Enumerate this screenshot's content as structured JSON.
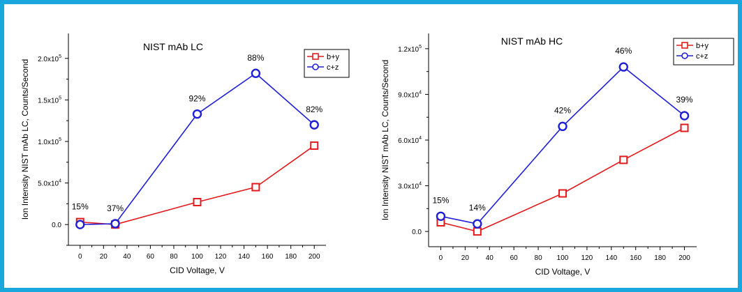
{
  "chart_data": [
    {
      "type": "line",
      "title": "NIST mAb LC",
      "xlabel": "CID Voltage, V",
      "ylabel": "Ion Intensity NIST mAb LC, Counts/Second",
      "x": [
        0,
        30,
        100,
        150,
        200
      ],
      "xlim": [
        -10,
        210
      ],
      "ylim": [
        -25000,
        230000
      ],
      "xticks": [
        0,
        20,
        40,
        60,
        80,
        100,
        120,
        140,
        160,
        180,
        200
      ],
      "yticks": [
        {
          "value": 0,
          "mantissa": "0.0",
          "exp": ""
        },
        {
          "value": 50000,
          "mantissa": "5.0x10",
          "exp": "4"
        },
        {
          "value": 100000,
          "mantissa": "1.0x10",
          "exp": "5"
        },
        {
          "value": 150000,
          "mantissa": "1.5x10",
          "exp": "5"
        },
        {
          "value": 200000,
          "mantissa": "2.0x10",
          "exp": "5"
        }
      ],
      "series": [
        {
          "name": "b+y",
          "marker": "square",
          "color": "#e31a1c",
          "values": [
            3000,
            0,
            27000,
            45000,
            95000
          ]
        },
        {
          "name": "c+z",
          "marker": "circle",
          "color": "#1f1fd6",
          "values": [
            0,
            1000,
            133000,
            182000,
            120000
          ]
        }
      ],
      "annotations": [
        "15%",
        "37%",
        "92%",
        "88%",
        "82%"
      ],
      "legend_position": "top-right",
      "grid": false
    },
    {
      "type": "line",
      "title": "NIST mAb HC",
      "xlabel": "CID Voltage, V",
      "ylabel": "Ion Intensity NIST mAb LC, Counts/Second",
      "x": [
        0,
        30,
        100,
        150,
        200
      ],
      "xlim": [
        -10,
        210
      ],
      "ylim": [
        -10000,
        130000
      ],
      "xticks": [
        0,
        20,
        40,
        60,
        80,
        100,
        120,
        140,
        160,
        180,
        200
      ],
      "yticks": [
        {
          "value": 0,
          "mantissa": "0.0",
          "exp": ""
        },
        {
          "value": 30000,
          "mantissa": "3.0x10",
          "exp": "4"
        },
        {
          "value": 60000,
          "mantissa": "6.0x10",
          "exp": "4"
        },
        {
          "value": 90000,
          "mantissa": "9.0x10",
          "exp": "4"
        },
        {
          "value": 120000,
          "mantissa": "1.2x10",
          "exp": "5"
        }
      ],
      "series": [
        {
          "name": "b+y",
          "marker": "square",
          "color": "#e31a1c",
          "values": [
            6000,
            0,
            25000,
            47000,
            68000
          ]
        },
        {
          "name": "c+z",
          "marker": "circle",
          "color": "#1f1fd6",
          "values": [
            10000,
            5000,
            69000,
            108000,
            76000
          ]
        }
      ],
      "annotations": [
        "15%",
        "14%",
        "42%",
        "46%",
        "39%"
      ],
      "legend_position": "top-right",
      "grid": false
    }
  ]
}
